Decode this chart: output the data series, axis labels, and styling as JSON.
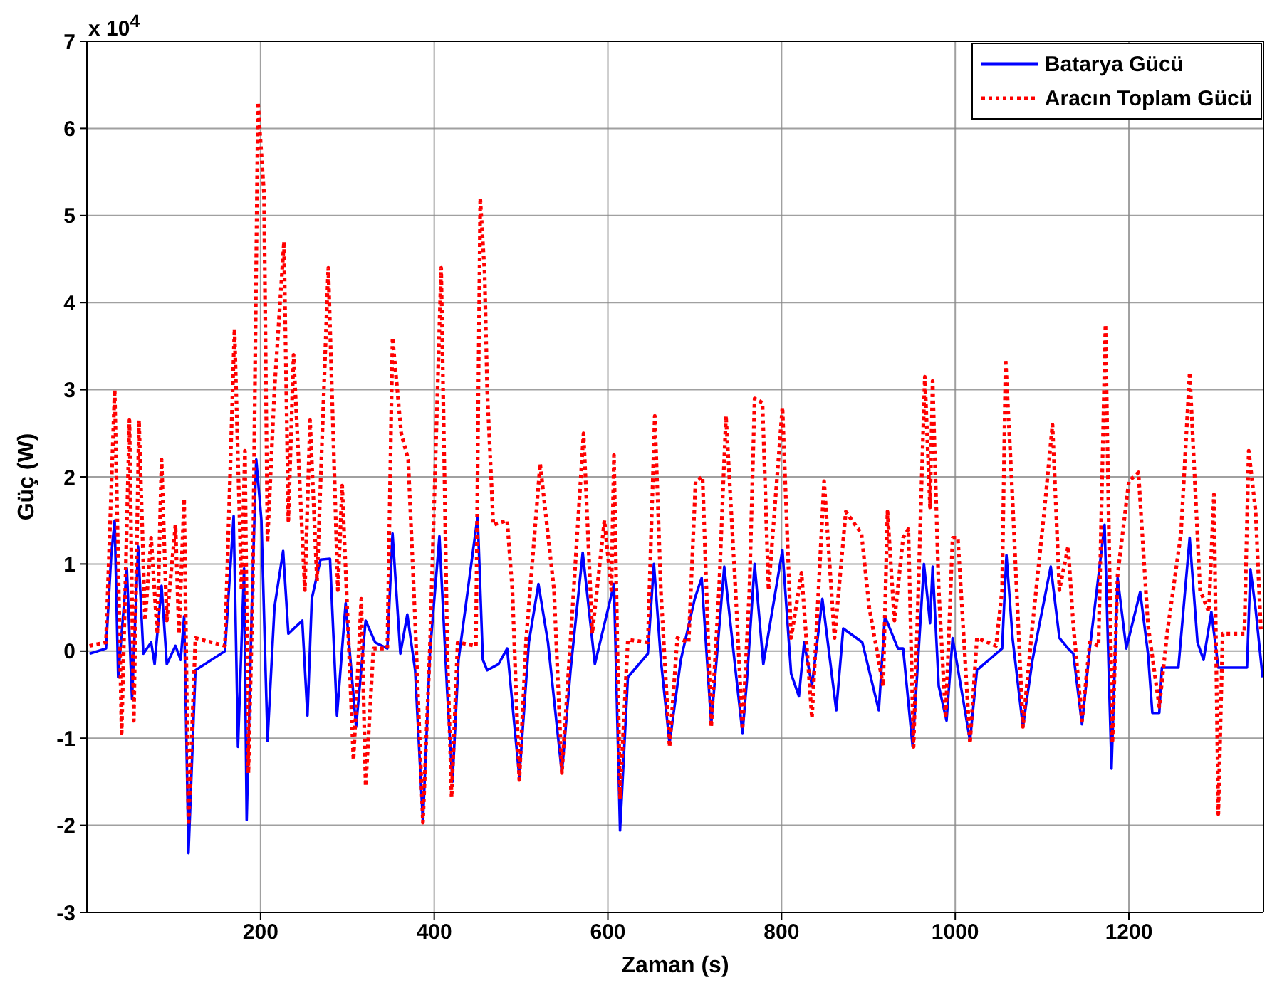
{
  "chart_data": {
    "type": "line",
    "xlabel": "Zaman (s)",
    "ylabel": "Güç (W)",
    "annotations": [
      "x 10$^{4}$"
    ],
    "xlim": [
      0,
      1355
    ],
    "xticks": [
      200,
      400,
      600,
      800,
      1000,
      1200
    ],
    "ylim": [
      -3,
      7
    ],
    "yticks": [
      -3,
      -2,
      -1,
      0,
      1,
      2,
      3,
      4,
      5,
      6,
      7
    ],
    "grid": true,
    "legend": "top right",
    "marker": "none",
    "series": [
      {
        "name": "Batarya Gücü",
        "color": "#0000ff",
        "line_style": "solid",
        "x": [
          3,
          22,
          28,
          32,
          36,
          46,
          52,
          59,
          65,
          74,
          78,
          86,
          92,
          102,
          108,
          112,
          117,
          125,
          159,
          169,
          174,
          181,
          184,
          190,
          195,
          201,
          208,
          216,
          226,
          232,
          248,
          254,
          259,
          269,
          280,
          288,
          298,
          310,
          321,
          332,
          346,
          352,
          361,
          369,
          378,
          387,
          395,
          406,
          415,
          421,
          428,
          450,
          456,
          461,
          474,
          484,
          498,
          509,
          520,
          531,
          547,
          557,
          571,
          585,
          607,
          614,
          623,
          646,
          653,
          661,
          671,
          684,
          700,
          708,
          719,
          734,
          747,
          755,
          760,
          769,
          779,
          801,
          811,
          820,
          826,
          835,
          847,
          863,
          871,
          893,
          912,
          919,
          934,
          940,
          951,
          964,
          971,
          974,
          981,
          990,
          997,
          1009,
          1017,
          1025,
          1054,
          1059,
          1066,
          1078,
          1089,
          1110,
          1120,
          1130,
          1136,
          1146,
          1155,
          1172,
          1180,
          1187,
          1197,
          1213,
          1222,
          1227,
          1235,
          1238,
          1257,
          1270,
          1279,
          1286,
          1295,
          1303,
          1336,
          1340,
          1346,
          1354
        ],
        "values": [
          -0.03,
          0.03,
          1.1,
          1.5,
          -0.3,
          0.95,
          -0.55,
          1.2,
          -0.03,
          0.1,
          -0.15,
          0.75,
          -0.15,
          0.06,
          -0.1,
          0.4,
          -2.32,
          -0.22,
          0,
          1.55,
          -1.1,
          0.95,
          -1.94,
          0.55,
          2.2,
          1.5,
          -1.03,
          0.5,
          1.15,
          0.2,
          0.35,
          -0.74,
          0.6,
          1.05,
          1.06,
          -0.74,
          0.55,
          -0.87,
          0.35,
          0.1,
          0.03,
          1.35,
          -0.03,
          0.42,
          -0.22,
          -1.97,
          -0.03,
          1.32,
          -0.48,
          -1.5,
          -0.1,
          1.55,
          -0.1,
          -0.22,
          -0.15,
          0.03,
          -1.45,
          0.1,
          0.77,
          0.1,
          -1.4,
          -0.22,
          1.13,
          -0.15,
          0.77,
          -2.06,
          -0.3,
          -0.03,
          1,
          -0.1,
          -1.06,
          -0.1,
          0.6,
          0.84,
          -0.84,
          0.97,
          -0.22,
          -0.94,
          -0.35,
          1,
          -0.15,
          1.16,
          -0.26,
          -0.52,
          0.1,
          -0.4,
          0.6,
          -0.68,
          0.26,
          0.1,
          -0.68,
          0.4,
          0.03,
          0.03,
          -1.1,
          1,
          0.32,
          0.97,
          -0.4,
          -0.8,
          0.15,
          -0.55,
          -1.03,
          -0.22,
          0.03,
          1.1,
          0.15,
          -0.87,
          -0.1,
          0.97,
          0.15,
          0.03,
          -0.03,
          -0.84,
          0.03,
          1.45,
          -1.35,
          0.84,
          0.03,
          0.68,
          -0.03,
          -0.71,
          -0.71,
          -0.19,
          -0.19,
          1.3,
          0.1,
          -0.1,
          0.45,
          -0.19,
          -0.19,
          0.94,
          0.48,
          -0.3
        ]
      },
      {
        "name": "Aracın Toplam Gücü",
        "color": "#ff0000",
        "line_style": "dotted",
        "x": [
          3,
          22,
          32,
          40,
          49,
          54,
          60,
          67,
          74,
          81,
          86,
          92,
          102,
          106,
          112,
          117,
          125,
          159,
          170,
          178,
          182,
          186,
          191,
          197,
          204,
          208,
          216,
          227,
          232,
          238,
          251,
          257,
          265,
          278,
          289,
          294,
          307,
          316,
          321,
          330,
          346,
          352,
          362,
          370,
          378,
          387,
          395,
          408,
          415,
          420,
          427,
          448,
          453,
          458,
          461,
          468,
          484,
          490,
          498,
          506,
          522,
          538,
          547,
          557,
          572,
          582,
          596,
          604,
          607,
          614,
          623,
          646,
          654,
          661,
          671,
          680,
          693,
          701,
          709,
          719,
          728,
          736,
          747,
          755,
          763,
          769,
          778,
          785,
          801,
          811,
          823,
          835,
          849,
          861,
          874,
          892,
          901,
          917,
          922,
          930,
          940,
          946,
          952,
          965,
          971,
          974,
          981,
          989,
          997,
          1003,
          1009,
          1017,
          1025,
          1047,
          1054,
          1058,
          1065,
          1078,
          1089,
          1103,
          1112,
          1120,
          1130,
          1136,
          1146,
          1155,
          1165,
          1173,
          1181,
          1187,
          1200,
          1211,
          1222,
          1235,
          1244,
          1260,
          1270,
          1282,
          1292,
          1298,
          1303,
          1308,
          1333,
          1338,
          1346,
          1352
        ],
        "values": [
          0.06,
          0.1,
          3,
          -0.94,
          2.65,
          -0.8,
          2.65,
          0.35,
          1.3,
          0.2,
          2.2,
          0.35,
          1.45,
          0.2,
          1.75,
          -2,
          0.15,
          0.06,
          3.7,
          0.7,
          2.3,
          -1.4,
          0.7,
          6.3,
          5.25,
          1.25,
          3,
          4.7,
          1.5,
          3.4,
          0.7,
          2.65,
          0.8,
          4.4,
          0.7,
          1.9,
          -1.25,
          0.6,
          -1.55,
          0.03,
          0.03,
          3.6,
          2.5,
          2.2,
          0.35,
          -1.97,
          0.03,
          4.4,
          0.03,
          -1.68,
          0.1,
          0.06,
          5.2,
          4.35,
          3,
          1.45,
          1.5,
          0.7,
          -1.48,
          0.15,
          2.15,
          0.7,
          -1.4,
          0.13,
          2.5,
          0.2,
          1.5,
          0.7,
          2.25,
          -1.68,
          0.13,
          0.1,
          2.7,
          0.7,
          -1.1,
          0.15,
          0.1,
          1.95,
          2,
          -0.87,
          0.7,
          2.7,
          0.7,
          -0.9,
          0.7,
          2.9,
          2.85,
          0.7,
          2.8,
          0.15,
          0.9,
          -0.77,
          1.95,
          0.15,
          1.6,
          1.35,
          0.5,
          -0.4,
          1.6,
          0.35,
          1.3,
          1.4,
          -1.1,
          3.15,
          1.65,
          3.1,
          0.7,
          -0.77,
          1.3,
          1.3,
          0.3,
          -1.06,
          0.15,
          0.06,
          0.7,
          3.35,
          1.95,
          -0.87,
          0.3,
          1.65,
          2.6,
          0.7,
          1.2,
          0.3,
          -0.8,
          0.1,
          0.06,
          3.75,
          -1.06,
          0.87,
          1.95,
          2.05,
          0.3,
          -0.64,
          0.2,
          1.35,
          3.2,
          0.7,
          0.45,
          1.8,
          -1.87,
          0.2,
          0.2,
          2.3,
          1.6,
          0.25
        ]
      }
    ]
  }
}
